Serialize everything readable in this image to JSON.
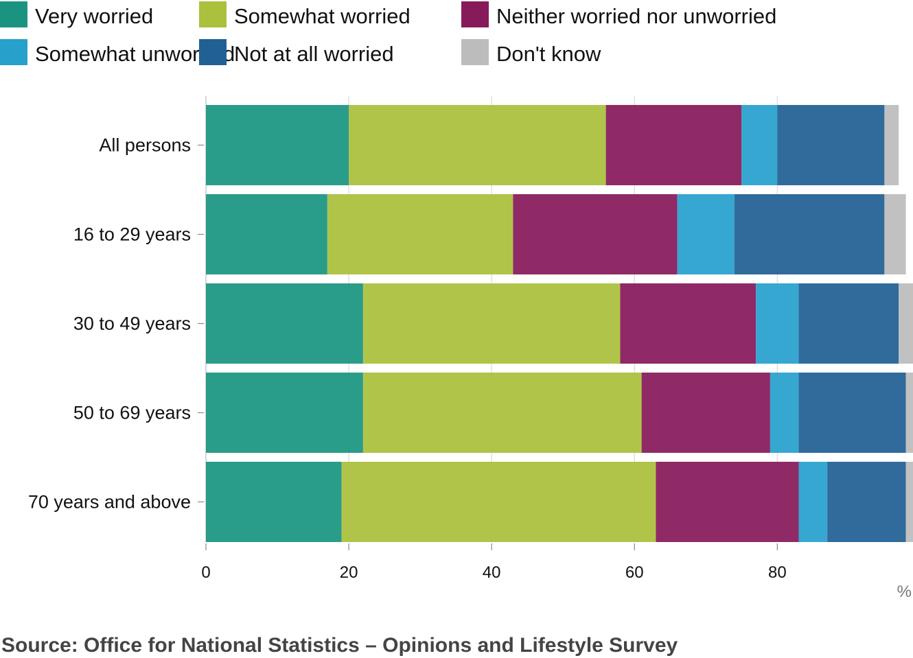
{
  "chart_data": {
    "type": "bar",
    "orientation": "horizontal",
    "stacked": true,
    "categories": [
      "All persons",
      "16 to 29 years",
      "30 to 49 years",
      "50 to 69 years",
      "70 years and above"
    ],
    "series": [
      {
        "name": "Very worried",
        "color": "#1a9481",
        "values": [
          20,
          17,
          22,
          22,
          19
        ]
      },
      {
        "name": "Somewhat worried",
        "color": "#abc03c",
        "values": [
          36,
          26,
          36,
          39,
          44
        ]
      },
      {
        "name": "Neither worried nor unworried",
        "color": "#871a5b",
        "values": [
          19,
          23,
          19,
          18,
          20
        ]
      },
      {
        "name": "Somewhat unworried",
        "color": "#27a0cc",
        "values": [
          5,
          8,
          6,
          4,
          4
        ]
      },
      {
        "name": "Not at all worried",
        "color": "#206095",
        "values": [
          15,
          21,
          14,
          15,
          11
        ]
      },
      {
        "name": "Don't know",
        "color": "#bcbcbc",
        "values": [
          2,
          3,
          2,
          1,
          1
        ]
      }
    ],
    "xlim": [
      0,
      99
    ],
    "xticks": [
      "0",
      "20",
      "40",
      "60",
      "80"
    ],
    "xtick_values": [
      0,
      20,
      40,
      60,
      80
    ],
    "unit": "%",
    "grid": true,
    "legend_position": "top"
  },
  "source": "Source: Office for National Statistics – Opinions and Lifestyle Survey"
}
